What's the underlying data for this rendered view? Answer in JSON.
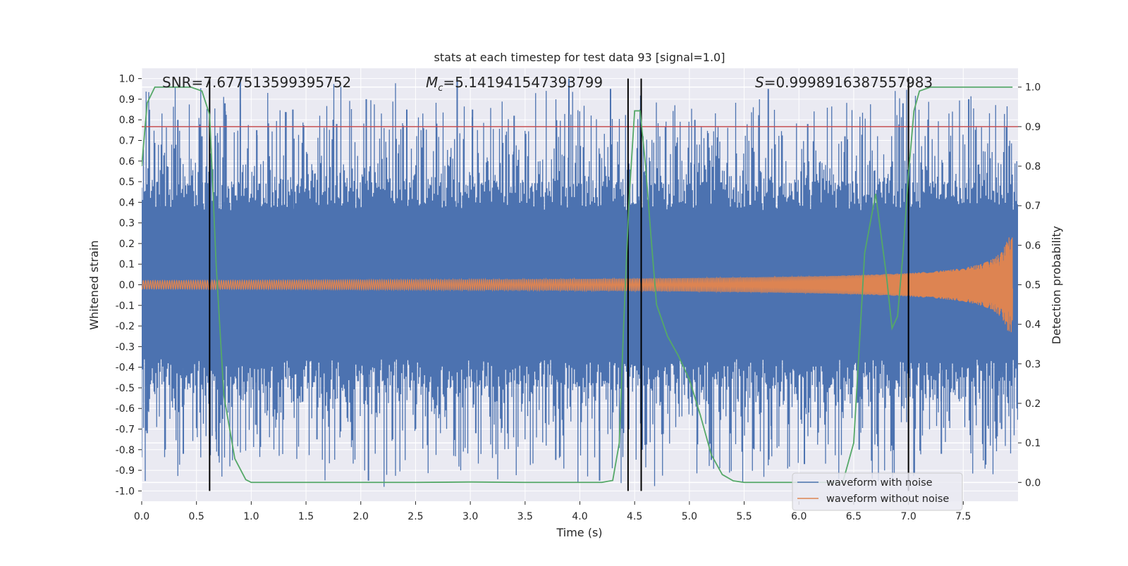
{
  "chart_data": {
    "type": "line",
    "title": "stats at each timestep for test data 93 [signal=1.0]",
    "xlabel": "Time (s)",
    "ylabel": "Whitened strain",
    "y2label": "Detection probability",
    "xlim": [
      0.0,
      8.0
    ],
    "ylim": [
      -1.05,
      1.05
    ],
    "y2lim": [
      -0.0476,
      1.0476
    ],
    "xticks": [
      "0.0",
      "0.5",
      "1.0",
      "1.5",
      "2.0",
      "2.5",
      "3.0",
      "3.5",
      "4.0",
      "4.5",
      "5.0",
      "5.5",
      "6.0",
      "6.5",
      "7.0",
      "7.5"
    ],
    "yticks": [
      "1.0",
      "0.9",
      "0.8",
      "0.7",
      "0.6",
      "0.5",
      "0.4",
      "0.3",
      "0.2",
      "0.1",
      "0.0",
      "-0.1",
      "-0.2",
      "-0.3",
      "-0.4",
      "-0.5",
      "-0.6",
      "-0.7",
      "-0.8",
      "-0.9",
      "-1.0"
    ],
    "y2ticks": [
      "1.0",
      "0.9",
      "0.8",
      "0.7",
      "0.6",
      "0.5",
      "0.4",
      "0.3",
      "0.2",
      "0.1",
      "0.0"
    ],
    "grid": true,
    "legend_position": "bottom-right",
    "annotations": {
      "snr": "SNR=7.677513599395752",
      "mc_symbol": "M",
      "mc_sub": "c",
      "mc_value": "=5.141941547393799",
      "s_symbol": "S",
      "s_value": "=0.9998916387557983"
    },
    "threshold": {
      "axis": "y2",
      "value": 0.9,
      "color": "#c44e52"
    },
    "vertical_lines": [
      0.62,
      4.44,
      4.56,
      7.0
    ],
    "series": [
      {
        "name": "waveform with noise",
        "axis": "y",
        "color": "#4c72b0",
        "kind": "noise-band",
        "x_range": [
          0.0,
          8.0
        ],
        "envelope": [
          0.65,
          -0.65
        ],
        "peaks": [
          [
            0.18,
            0.68
          ],
          [
            0.33,
            0.8
          ],
          [
            0.55,
            0.72
          ],
          [
            0.76,
            0.88
          ],
          [
            0.9,
            1.0
          ],
          [
            1.05,
            0.75
          ],
          [
            1.38,
            0.85
          ],
          [
            1.78,
            0.78
          ],
          [
            2.05,
            0.9
          ],
          [
            2.42,
            0.85
          ],
          [
            2.88,
            1.0
          ],
          [
            3.02,
            0.85
          ],
          [
            3.4,
            0.82
          ],
          [
            3.9,
            1.0
          ],
          [
            4.28,
            0.95
          ],
          [
            4.55,
            0.85
          ],
          [
            5.05,
            0.8
          ],
          [
            5.72,
            0.95
          ],
          [
            6.08,
            0.78
          ],
          [
            6.42,
            0.72
          ],
          [
            6.95,
            0.88
          ],
          [
            7.55,
            0.9
          ]
        ],
        "troughs": [
          [
            0.05,
            -0.72
          ],
          [
            0.38,
            -0.82
          ],
          [
            0.68,
            -0.75
          ],
          [
            1.05,
            -0.68
          ],
          [
            1.6,
            -0.75
          ],
          [
            2.07,
            -0.95
          ],
          [
            2.5,
            -0.7
          ],
          [
            3.05,
            -0.72
          ],
          [
            3.78,
            -0.85
          ],
          [
            4.18,
            -0.95
          ],
          [
            4.57,
            -0.8
          ],
          [
            5.2,
            -0.85
          ],
          [
            5.75,
            -0.75
          ],
          [
            6.05,
            -0.87
          ],
          [
            6.55,
            -0.8
          ],
          [
            7.3,
            -0.82
          ],
          [
            7.85,
            -0.7
          ]
        ]
      },
      {
        "name": "waveform without noise",
        "axis": "y",
        "color": "#dd8452",
        "kind": "chirp",
        "x_range": [
          0.0,
          7.95
        ],
        "amplitude_start": 0.02,
        "amplitude_end": 0.23
      },
      {
        "name": "",
        "axis": "y2",
        "color": "#55a868",
        "kind": "line",
        "x": [
          0.0,
          0.05,
          0.12,
          0.2,
          0.3,
          0.45,
          0.55,
          0.62,
          0.68,
          0.75,
          0.85,
          0.95,
          1.0,
          1.5,
          2.0,
          2.5,
          3.0,
          3.5,
          4.0,
          4.2,
          4.3,
          4.36,
          4.4,
          4.45,
          4.5,
          4.55,
          4.6,
          4.65,
          4.7,
          4.8,
          4.9,
          5.0,
          5.1,
          5.2,
          5.3,
          5.4,
          5.5,
          6.0,
          6.4,
          6.5,
          6.6,
          6.7,
          6.8,
          6.85,
          6.9,
          6.95,
          7.0,
          7.05,
          7.1,
          7.2,
          7.95
        ],
        "y": [
          0.8,
          0.96,
          1.0,
          1.0,
          1.0,
          1.0,
          0.99,
          0.93,
          0.55,
          0.22,
          0.06,
          0.007,
          0.0,
          0.0,
          0.0,
          0.0,
          0.001,
          0.0,
          0.0,
          0.0,
          0.005,
          0.1,
          0.4,
          0.72,
          0.94,
          0.94,
          0.8,
          0.62,
          0.45,
          0.37,
          0.32,
          0.26,
          0.17,
          0.07,
          0.02,
          0.004,
          0.0,
          0.0,
          0.0,
          0.1,
          0.58,
          0.73,
          0.52,
          0.39,
          0.42,
          0.58,
          0.78,
          0.94,
          0.99,
          1.0,
          1.0
        ]
      }
    ]
  }
}
